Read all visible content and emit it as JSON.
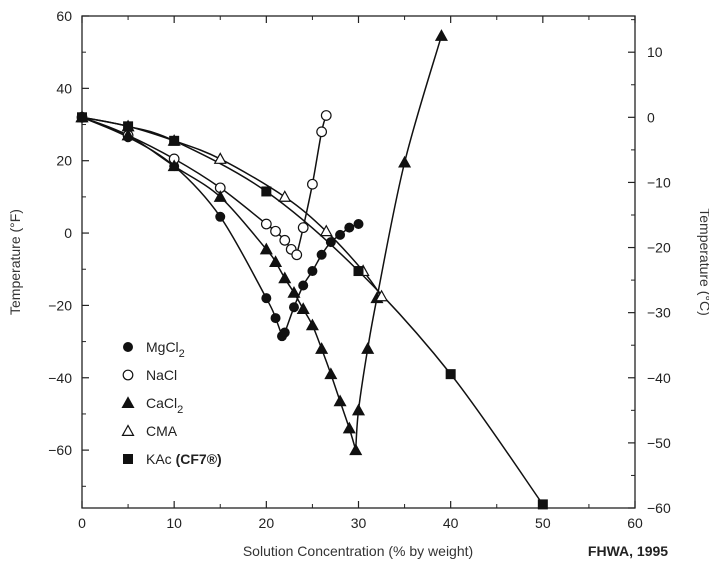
{
  "chart_data": {
    "type": "line",
    "xlabel": "Solution Concentration (% by weight)",
    "ylabel": "Temperature (°F)",
    "y2label": "Temperature (°C)",
    "xlim": [
      0,
      60
    ],
    "ylim": [
      -76,
      60
    ],
    "y2lim": [
      -60.0,
      15.56
    ],
    "xticks": [
      0,
      10,
      20,
      30,
      40,
      50,
      60
    ],
    "yticks": [
      -60,
      -40,
      -20,
      0,
      20,
      40,
      60
    ],
    "y2ticks": [
      -60,
      -50,
      -40,
      -30,
      -20,
      -10,
      0,
      10
    ],
    "grid": false,
    "legend_position": "bottom-left",
    "source": "FHWA, 1995",
    "series": [
      {
        "name": "MgCl",
        "name_sub": "2",
        "marker": "filled-circle",
        "x": [
          0,
          5,
          10,
          15,
          20,
          21,
          21.7,
          22,
          23,
          24,
          25,
          26,
          27,
          28,
          29,
          30
        ],
        "y": [
          32,
          26.5,
          18.5,
          4.5,
          -18,
          -23.5,
          -28.5,
          -27.5,
          -20.5,
          -14.5,
          -10.5,
          -6,
          -2.5,
          -0.5,
          1.5,
          2.5
        ]
      },
      {
        "name": "NaCl",
        "marker": "open-circle",
        "x": [
          0,
          5,
          10,
          15,
          20,
          21,
          22,
          22.7,
          23.3,
          24,
          25,
          26,
          26.5
        ],
        "y": [
          32,
          27,
          20.5,
          12.5,
          2.5,
          0.5,
          -2,
          -4.5,
          -6,
          1.5,
          13.5,
          28,
          32.5
        ]
      },
      {
        "name": "CaCl",
        "name_sub": "2",
        "marker": "filled-triangle",
        "x": [
          0,
          5,
          10,
          15,
          20,
          21,
          22,
          23,
          24,
          25,
          26,
          27,
          28,
          29,
          29.7,
          30,
          31,
          32,
          35,
          39
        ],
        "y": [
          32,
          27,
          18.5,
          10,
          -4.5,
          -8,
          -12.5,
          -16.5,
          -21,
          -25.5,
          -32,
          -39,
          -46.5,
          -54,
          -60,
          -49,
          -32,
          -18,
          19.5,
          54.5
        ]
      },
      {
        "name": "CMA",
        "marker": "open-triangle",
        "x": [
          0,
          5,
          10,
          15,
          22,
          26.5,
          30.5,
          32.5
        ],
        "y": [
          32,
          29.5,
          25.5,
          20.5,
          10,
          0.5,
          -10.5,
          -17.5
        ]
      },
      {
        "name": "KAc",
        "name_bold_suffix": "(CF7®)",
        "marker": "filled-square",
        "x": [
          0,
          5,
          10,
          20,
          30,
          40,
          50
        ],
        "y": [
          32,
          29.5,
          25.5,
          11.5,
          -10.5,
          -39,
          -75
        ]
      }
    ]
  }
}
